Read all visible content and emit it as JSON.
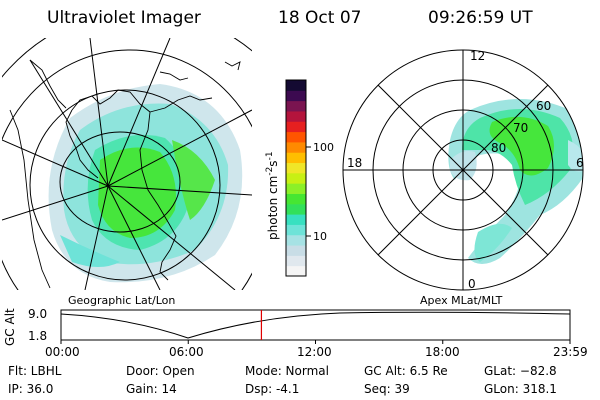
{
  "header": {
    "instrument": "Ultraviolet Imager",
    "date": "18 Oct 07",
    "time": "09:26:59 UT"
  },
  "left_panel": {
    "label": "Geographic Lat/Lon"
  },
  "right_panel": {
    "label": "Apex MLat/MLT",
    "mlt_labels": {
      "top": "12",
      "left": "18",
      "right": "6",
      "bottom": "0"
    },
    "lat_labels": [
      "60",
      "70",
      "80"
    ]
  },
  "colorbar": {
    "unit_label": "photon cm",
    "unit_sup1": "-2",
    "unit_mid": "s",
    "unit_sup2": "-1",
    "ticks": [
      "100",
      "10"
    ],
    "colors": [
      "#f5f5f5",
      "#e0e8ee",
      "#c8dde6",
      "#a6e2e4",
      "#6ee3d8",
      "#38e0c0",
      "#32e05a",
      "#46e632",
      "#8cf028",
      "#c8f014",
      "#f0e628",
      "#ffbe00",
      "#ff8a00",
      "#ff5500",
      "#e62020",
      "#b4143c",
      "#7a1450",
      "#3c0a50",
      "#140a32"
    ]
  },
  "timeline": {
    "axis_label": "GC Alt",
    "y_ticks": [
      "9.0",
      "1.8"
    ],
    "x_ticks": [
      "00:00",
      "06:00",
      "12:00",
      "18:00",
      "23:59"
    ],
    "current_time_hours": 9.45,
    "marker_color": "#e00000"
  },
  "footer": {
    "filter": "Flt: LBHL",
    "ip": "IP: 36.0",
    "door": "Door: Open",
    "gain": "Gain: 14",
    "mode": "Mode: Normal",
    "dsp": "Dsp:    -4.1",
    "gc_alt": "GC Alt: 6.5 Re",
    "seq": "Seq: 39",
    "glat": "GLat: −82.8",
    "glon": "GLon: 318.1"
  }
}
